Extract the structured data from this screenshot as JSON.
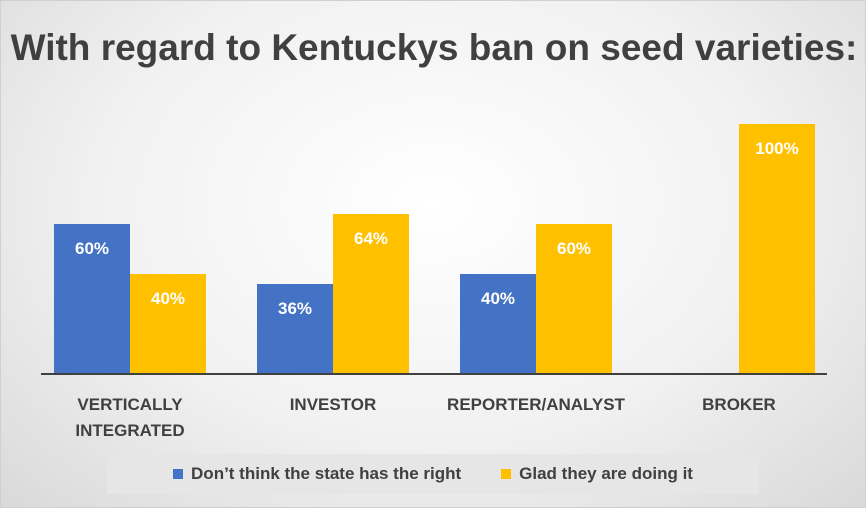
{
  "chart_data": {
    "type": "bar",
    "title": "With regard to Kentuckys ban on seed varieties:",
    "categories": [
      "VERTICALLY INTEGRATED",
      "INVESTOR",
      "REPORTER/ANALYST",
      "BROKER"
    ],
    "series": [
      {
        "name": "Don’t think the state has the right",
        "color": "#4472c4",
        "values": [
          60,
          36,
          40,
          null
        ],
        "labels": [
          "60%",
          "36%",
          "40%",
          ""
        ]
      },
      {
        "name": "Glad they are doing it",
        "color": "#ffc000",
        "values": [
          40,
          64,
          60,
          100
        ],
        "labels": [
          "40%",
          "64%",
          "60%",
          "100%"
        ]
      }
    ],
    "ylim": [
      0,
      100
    ],
    "grid": false,
    "legend_position": "bottom"
  }
}
